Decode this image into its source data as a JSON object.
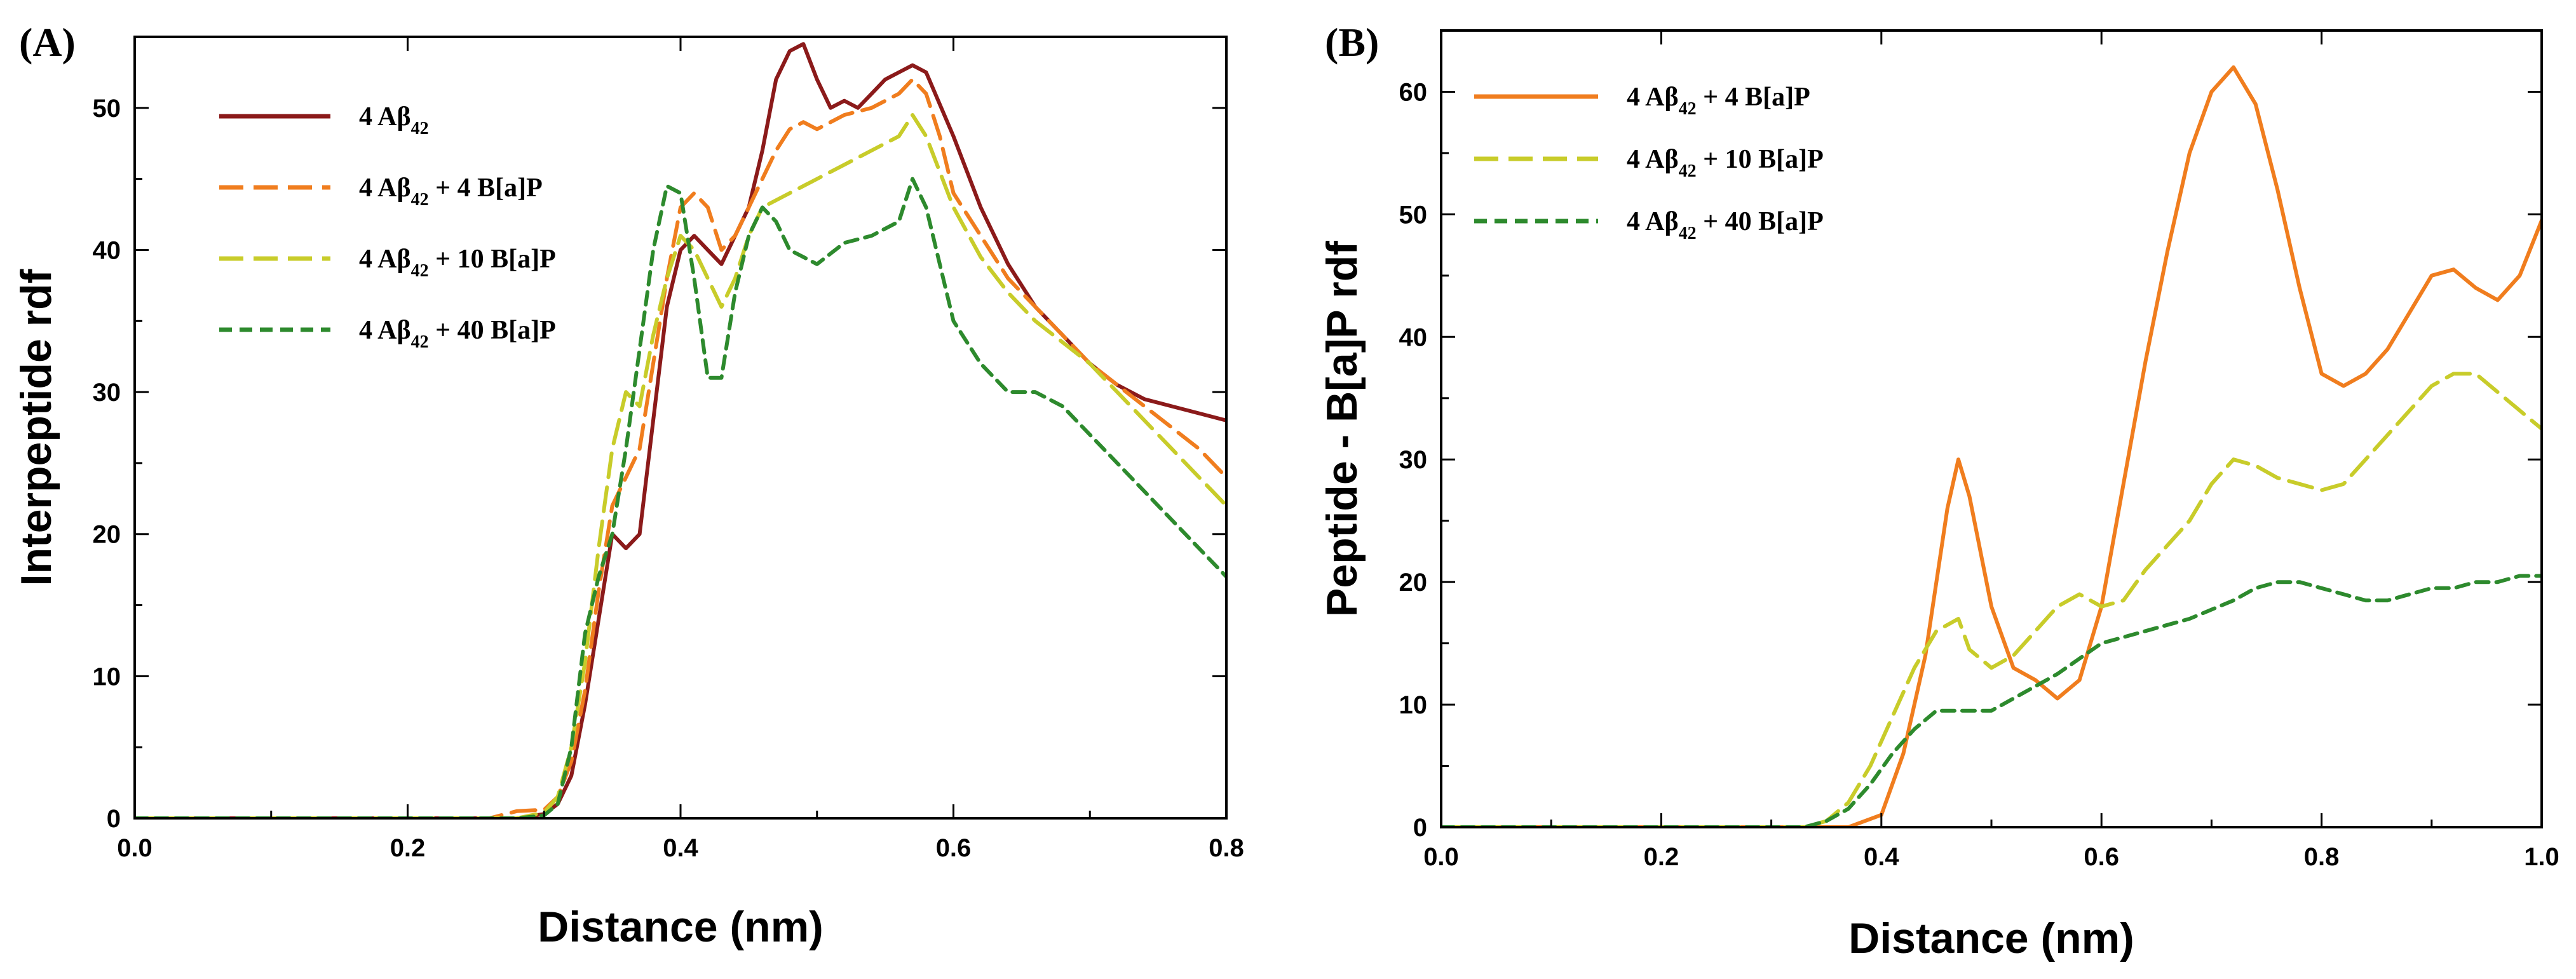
{
  "chart_data": [
    {
      "type": "line",
      "panel_label": "(A)",
      "title": "",
      "xlabel": "Distance (nm)",
      "ylabel": "Interpeptide rdf",
      "xlim": [
        0.0,
        0.8
      ],
      "ylim": [
        0,
        55
      ],
      "xticks": [
        0.0,
        0.2,
        0.4,
        0.6,
        0.8
      ],
      "xtick_labels": [
        "0.0",
        "0.2",
        "0.4",
        "0.6",
        "0.8"
      ],
      "yticks": [
        0,
        10,
        20,
        30,
        40,
        50
      ],
      "ytick_labels": [
        "0",
        "10",
        "20",
        "30",
        "40",
        "50"
      ],
      "legend_position": "top-left",
      "series": [
        {
          "name": "4 Aβ42",
          "legend_main": "4 Aβ",
          "legend_sub": "42",
          "legend_tail": "",
          "color": "#8b1a1a",
          "dash": "solid",
          "x": [
            0.0,
            0.28,
            0.3,
            0.31,
            0.32,
            0.33,
            0.34,
            0.35,
            0.36,
            0.37,
            0.38,
            0.39,
            0.4,
            0.41,
            0.42,
            0.43,
            0.44,
            0.45,
            0.46,
            0.47,
            0.48,
            0.49,
            0.5,
            0.51,
            0.52,
            0.53,
            0.54,
            0.55,
            0.56,
            0.57,
            0.58,
            0.6,
            0.62,
            0.64,
            0.66,
            0.68,
            0.7,
            0.72,
            0.74,
            0.76,
            0.78,
            0.8
          ],
          "y": [
            0,
            0,
            0.3,
            1,
            3,
            8,
            14,
            20,
            19,
            20,
            28,
            36,
            40,
            41,
            40,
            39,
            41,
            43,
            47,
            52,
            54,
            54.5,
            52,
            50,
            50.5,
            50,
            51,
            52,
            52.5,
            53,
            52.5,
            48,
            43,
            39,
            36,
            34,
            32,
            30.5,
            29.5,
            29,
            28.5,
            28
          ]
        },
        {
          "name": "4 Aβ42 + 4 B[a]P",
          "legend_main": "4 Aβ",
          "legend_sub": "42",
          "legend_tail": " + 4 B[a]P",
          "color": "#f07d1e",
          "dash": "long-dash",
          "x": [
            0.0,
            0.26,
            0.28,
            0.3,
            0.31,
            0.32,
            0.33,
            0.34,
            0.35,
            0.36,
            0.37,
            0.38,
            0.39,
            0.4,
            0.41,
            0.42,
            0.43,
            0.44,
            0.45,
            0.46,
            0.47,
            0.48,
            0.49,
            0.5,
            0.52,
            0.54,
            0.56,
            0.57,
            0.58,
            0.59,
            0.6,
            0.62,
            0.64,
            0.66,
            0.68,
            0.7,
            0.72,
            0.74,
            0.76,
            0.78,
            0.8
          ],
          "y": [
            0,
            0,
            0.5,
            0.6,
            1.5,
            4,
            9,
            16,
            22,
            24,
            26,
            32,
            38,
            43,
            44,
            43,
            40,
            41,
            43,
            45,
            47,
            48.5,
            49,
            48.5,
            49.5,
            50,
            51,
            52,
            51,
            48,
            44,
            41,
            38,
            36,
            34,
            32,
            30.5,
            29,
            27.5,
            26,
            24
          ]
        },
        {
          "name": "4 Aβ42 + 10 B[a]P",
          "legend_main": "4 Aβ",
          "legend_sub": "42",
          "legend_tail": " + 10 B[a]P",
          "color": "#c8cc2a",
          "dash": "long-dash",
          "x": [
            0.0,
            0.28,
            0.3,
            0.31,
            0.32,
            0.33,
            0.34,
            0.35,
            0.36,
            0.37,
            0.38,
            0.39,
            0.4,
            0.41,
            0.42,
            0.43,
            0.44,
            0.45,
            0.46,
            0.48,
            0.5,
            0.52,
            0.54,
            0.56,
            0.57,
            0.58,
            0.6,
            0.62,
            0.64,
            0.66,
            0.68,
            0.7,
            0.72,
            0.74,
            0.76,
            0.78,
            0.8
          ],
          "y": [
            0,
            0,
            0.4,
            1.5,
            5,
            11,
            19,
            26,
            30,
            29,
            34,
            38,
            41,
            40,
            38,
            36,
            38,
            41,
            43,
            44,
            45,
            46,
            47,
            48,
            49.5,
            48,
            43,
            39.5,
            37,
            35,
            33.5,
            32,
            30,
            28,
            26,
            24,
            22
          ]
        },
        {
          "name": "4 Aβ42 + 40 B[a]P",
          "legend_main": "4 Aβ",
          "legend_sub": "42",
          "legend_tail": " + 40 B[a]P",
          "color": "#2d8a2d",
          "dash": "short-dash",
          "x": [
            0.0,
            0.28,
            0.3,
            0.31,
            0.32,
            0.33,
            0.34,
            0.35,
            0.36,
            0.37,
            0.38,
            0.39,
            0.4,
            0.41,
            0.42,
            0.43,
            0.44,
            0.45,
            0.46,
            0.47,
            0.48,
            0.49,
            0.5,
            0.52,
            0.54,
            0.56,
            0.57,
            0.58,
            0.6,
            0.62,
            0.64,
            0.66,
            0.68,
            0.7,
            0.72,
            0.74,
            0.76,
            0.78,
            0.8
          ],
          "y": [
            0,
            0,
            0.2,
            1,
            5,
            13,
            17,
            20,
            26,
            33,
            40,
            44.5,
            44,
            38,
            31,
            31,
            37,
            41,
            43,
            42,
            40,
            39.5,
            39,
            40.5,
            41,
            42,
            45,
            43,
            35,
            32,
            30,
            30,
            29,
            27,
            25,
            23,
            21,
            19,
            17
          ]
        }
      ]
    },
    {
      "type": "line",
      "panel_label": "(B)",
      "title": "",
      "xlabel": "Distance (nm)",
      "ylabel": "Peptide - B[a]P rdf",
      "xlim": [
        0.0,
        1.0
      ],
      "ylim": [
        0,
        65
      ],
      "xticks": [
        0.0,
        0.2,
        0.4,
        0.6,
        0.8,
        1.0
      ],
      "xtick_labels": [
        "0.0",
        "0.2",
        "0.4",
        "0.6",
        "0.8",
        "1.0"
      ],
      "yticks": [
        0,
        10,
        20,
        30,
        40,
        50,
        60
      ],
      "ytick_labels": [
        "0",
        "10",
        "20",
        "30",
        "40",
        "50",
        "60"
      ],
      "legend_position": "top-left",
      "series": [
        {
          "name": "4 Aβ42 + 4 B[a]P",
          "legend_main": "4 Aβ",
          "legend_sub": "42",
          "legend_tail": " + 4 B[a]P",
          "color": "#f07d1e",
          "dash": "solid",
          "x": [
            0.0,
            0.37,
            0.4,
            0.42,
            0.44,
            0.46,
            0.47,
            0.48,
            0.5,
            0.52,
            0.54,
            0.56,
            0.58,
            0.6,
            0.62,
            0.64,
            0.66,
            0.68,
            0.7,
            0.72,
            0.74,
            0.76,
            0.78,
            0.8,
            0.82,
            0.84,
            0.86,
            0.88,
            0.9,
            0.92,
            0.94,
            0.96,
            0.98,
            1.0
          ],
          "y": [
            0,
            0,
            1,
            6,
            14,
            26,
            30,
            27,
            18,
            13,
            12,
            10.5,
            12,
            18,
            28,
            38,
            47,
            55,
            60,
            62,
            59,
            52,
            44,
            37,
            36,
            37,
            39,
            42,
            45,
            45.5,
            44,
            43,
            45,
            49.5
          ]
        },
        {
          "name": "4 Aβ42 + 10 B[a]P",
          "legend_main": "4 Aβ",
          "legend_sub": "42",
          "legend_tail": " + 10 B[a]P",
          "color": "#c8cc2a",
          "dash": "long-dash",
          "x": [
            0.0,
            0.33,
            0.35,
            0.37,
            0.39,
            0.41,
            0.43,
            0.45,
            0.47,
            0.48,
            0.5,
            0.52,
            0.54,
            0.56,
            0.58,
            0.6,
            0.62,
            0.64,
            0.66,
            0.68,
            0.7,
            0.72,
            0.74,
            0.76,
            0.78,
            0.8,
            0.82,
            0.84,
            0.86,
            0.88,
            0.9,
            0.92,
            0.94,
            0.96,
            0.98,
            1.0
          ],
          "y": [
            0,
            0,
            0.5,
            2,
            5,
            9,
            13,
            16,
            17,
            14.5,
            13,
            14,
            16,
            18,
            19,
            18,
            18.5,
            21,
            23,
            25,
            28,
            30,
            29.5,
            28.5,
            28,
            27.5,
            28,
            30,
            32,
            34,
            36,
            37,
            37,
            35.5,
            34,
            32.5
          ]
        },
        {
          "name": "4 Aβ42 + 40 B[a]P",
          "legend_main": "4 Aβ",
          "legend_sub": "42",
          "legend_tail": " + 40 B[a]P",
          "color": "#2d8a2d",
          "dash": "short-dash",
          "x": [
            0.0,
            0.33,
            0.35,
            0.37,
            0.39,
            0.41,
            0.43,
            0.45,
            0.47,
            0.5,
            0.53,
            0.56,
            0.6,
            0.64,
            0.68,
            0.72,
            0.74,
            0.76,
            0.78,
            0.8,
            0.82,
            0.84,
            0.86,
            0.88,
            0.9,
            0.92,
            0.94,
            0.96,
            0.98,
            1.0
          ],
          "y": [
            0,
            0,
            0.5,
            1.5,
            3.5,
            6,
            8,
            9.5,
            9.5,
            9.5,
            11,
            12.5,
            15,
            16,
            17,
            18.5,
            19.5,
            20,
            20,
            19.5,
            19,
            18.5,
            18.5,
            19,
            19.5,
            19.5,
            20,
            20,
            20.5,
            20.5
          ]
        }
      ]
    }
  ]
}
